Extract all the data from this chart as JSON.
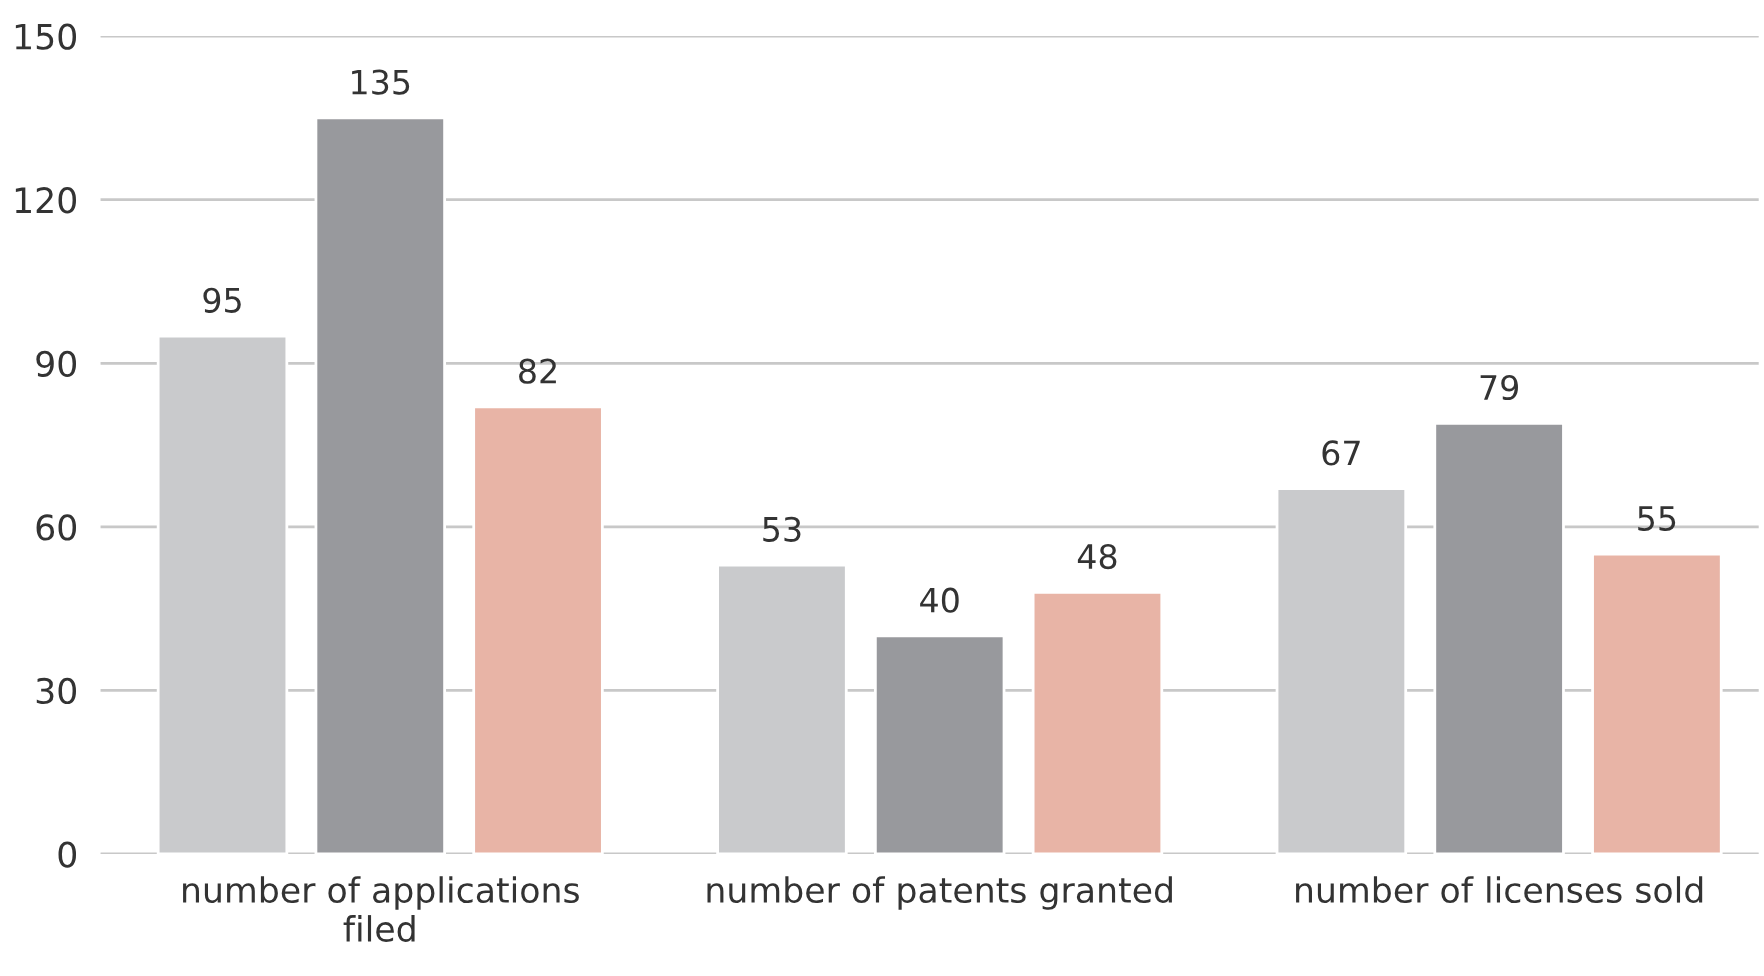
{
  "chart_data": {
    "type": "bar",
    "categories": [
      "number of applications\nfiled",
      "number of patents granted",
      "number of licenses sold"
    ],
    "series": [
      {
        "color": "#c9cacc",
        "values": [
          95,
          53,
          67
        ]
      },
      {
        "color": "#98999d",
        "values": [
          135,
          40,
          79
        ]
      },
      {
        "color": "#e8b4a6",
        "values": [
          82,
          48,
          55
        ]
      }
    ],
    "ylim": [
      0,
      150
    ],
    "yticks": [
      0,
      30,
      60,
      90,
      120,
      150
    ],
    "grid": "y",
    "data_labels": true,
    "legend": false
  }
}
